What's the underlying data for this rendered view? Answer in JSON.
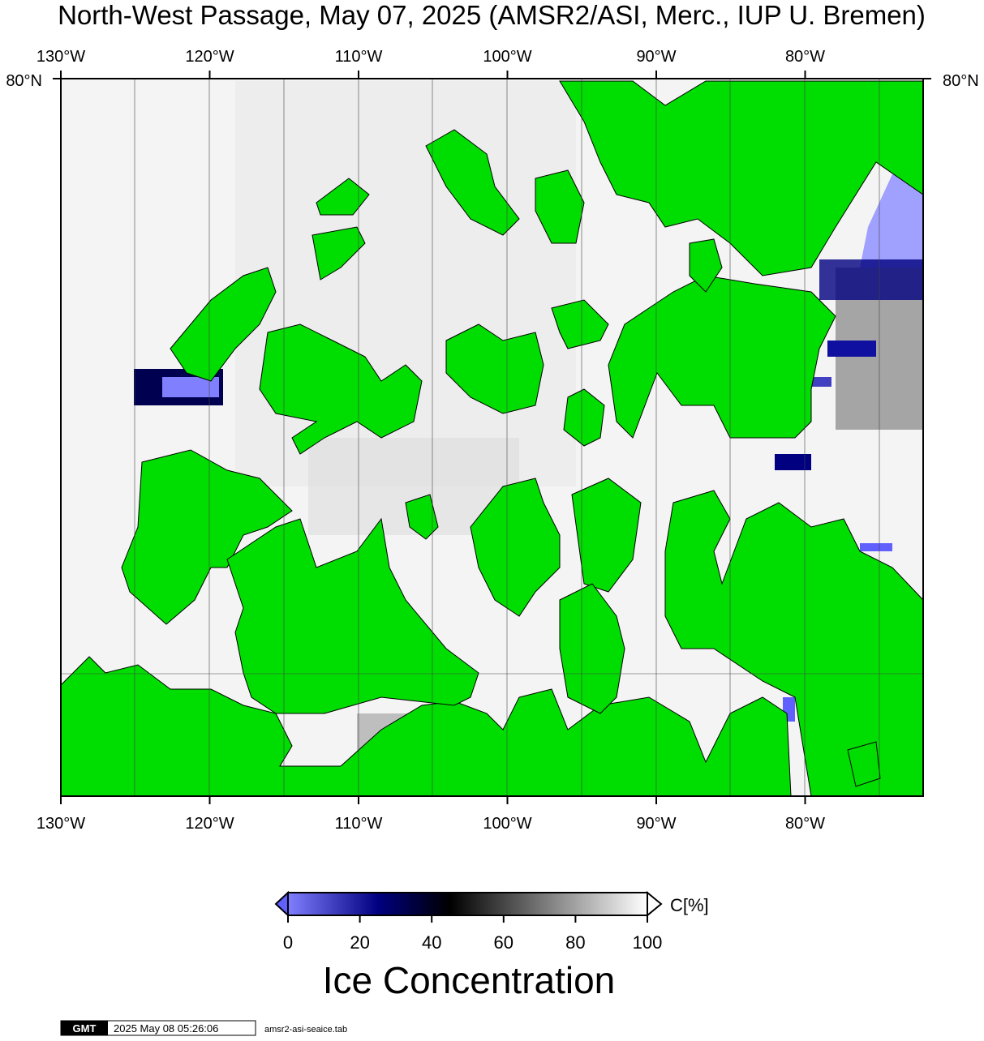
{
  "header": {
    "title": "North-West Passage, May 07, 2025 (AMSR2/ASI, Merc., IUP U. Bremen)"
  },
  "map": {
    "lon_labels": [
      "130°W",
      "120°W",
      "110°W",
      "100°W",
      "90°W",
      "80°W"
    ],
    "lat_label": "80°N"
  },
  "colorbar": {
    "ticks": [
      0,
      20,
      40,
      60,
      80,
      100
    ],
    "unit": "C[%]",
    "title": "Ice Concentration"
  },
  "footer": {
    "logo": "GMT",
    "timestamp": "2025 May 08 05:26:06",
    "file": "amsr2-asi-seaice.tab"
  }
}
